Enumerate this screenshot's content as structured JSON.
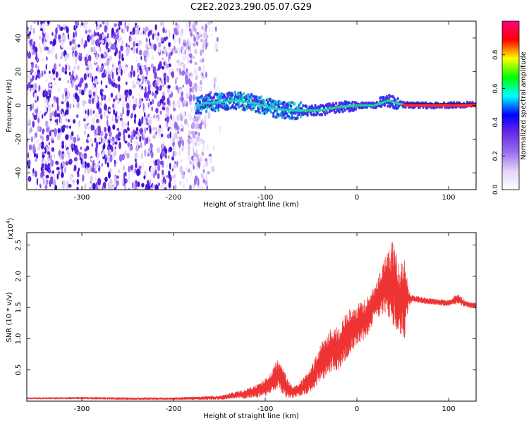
{
  "title": "C2E2.2023.290.05.07.G29",
  "chart_data": [
    {
      "type": "heatmap",
      "xlabel": "Height of straight line (km)",
      "ylabel": "Frequency (Hz)",
      "xlim": [
        -360,
        130
      ],
      "ylim": [
        -50,
        50
      ],
      "x_ticks": [
        -300,
        -200,
        -100,
        0,
        100
      ],
      "y_ticks": [
        -40,
        -20,
        0,
        20,
        40
      ],
      "colorbar": {
        "label": "Normalized spectral amplitude",
        "range": [
          0.0,
          1.0
        ],
        "ticks": [
          "0.0",
          "0.2",
          "0.4",
          "0.6",
          "0.8"
        ],
        "colors": [
          "#ffffff",
          "#e3d4f7",
          "#9b6cf0",
          "#6a2de6",
          "#0000ff",
          "#00ffff",
          "#00ff00",
          "#ffff00",
          "#ff0000",
          "#ff0080"
        ]
      },
      "features": {
        "noise_region_x": [
          -360,
          -165
        ],
        "noise_fade_x": [
          -165,
          -140
        ],
        "signal_band_center": [
          [
            -170,
            1
          ],
          [
            -150,
            2
          ],
          [
            -130,
            3
          ],
          [
            -110,
            1
          ],
          [
            -90,
            -2
          ],
          [
            -70,
            -3
          ],
          [
            -55,
            -3
          ],
          [
            -40,
            -3
          ],
          [
            -20,
            -1
          ],
          [
            0,
            0
          ],
          [
            20,
            0
          ],
          [
            35,
            3
          ],
          [
            45,
            1
          ],
          [
            60,
            0
          ],
          [
            100,
            0
          ],
          [
            130,
            1
          ]
        ]
      }
    },
    {
      "type": "line",
      "xlabel": "Height of straight line (km)",
      "ylabel": "SNR (10 * v/v)",
      "y_multiplier": "(x10",
      "y_multiplier_exp": "4",
      "y_multiplier_close": ")",
      "xlim": [
        -360,
        130
      ],
      "ylim": [
        0,
        2.7
      ],
      "x_ticks": [
        -300,
        -200,
        -100,
        0,
        100
      ],
      "y_ticks": [
        "0.5",
        "1.0",
        "1.5",
        "2.0",
        "2.5"
      ],
      "y_tick_values": [
        0.5,
        1.0,
        1.5,
        2.0,
        2.5
      ],
      "series": [
        {
          "color": "#ee3333",
          "envelope": [
            [
              -360,
              0.03,
              0.06
            ],
            [
              -300,
              0.03,
              0.07
            ],
            [
              -250,
              0.02,
              0.06
            ],
            [
              -200,
              0.02,
              0.06
            ],
            [
              -150,
              0.02,
              0.09
            ],
            [
              -120,
              0.04,
              0.2
            ],
            [
              -105,
              0.06,
              0.3
            ],
            [
              -95,
              0.1,
              0.48
            ],
            [
              -85,
              0.2,
              0.7
            ],
            [
              -78,
              0.05,
              0.45
            ],
            [
              -70,
              0.05,
              0.22
            ],
            [
              -60,
              0.08,
              0.35
            ],
            [
              -50,
              0.15,
              0.55
            ],
            [
              -40,
              0.3,
              0.9
            ],
            [
              -30,
              0.45,
              1.15
            ],
            [
              -20,
              0.5,
              1.2
            ],
            [
              -10,
              0.7,
              1.45
            ],
            [
              0,
              0.9,
              1.55
            ],
            [
              10,
              1.0,
              1.65
            ],
            [
              20,
              1.3,
              1.85
            ],
            [
              30,
              1.4,
              2.3
            ],
            [
              40,
              1.2,
              2.65
            ],
            [
              45,
              1.1,
              2.2
            ],
            [
              52,
              1.0,
              2.35
            ],
            [
              56,
              1.5,
              1.8
            ],
            [
              60,
              1.58,
              1.7
            ],
            [
              80,
              1.55,
              1.65
            ],
            [
              100,
              1.52,
              1.62
            ],
            [
              110,
              1.55,
              1.72
            ],
            [
              120,
              1.5,
              1.6
            ],
            [
              130,
              1.48,
              1.58
            ]
          ]
        }
      ]
    }
  ]
}
